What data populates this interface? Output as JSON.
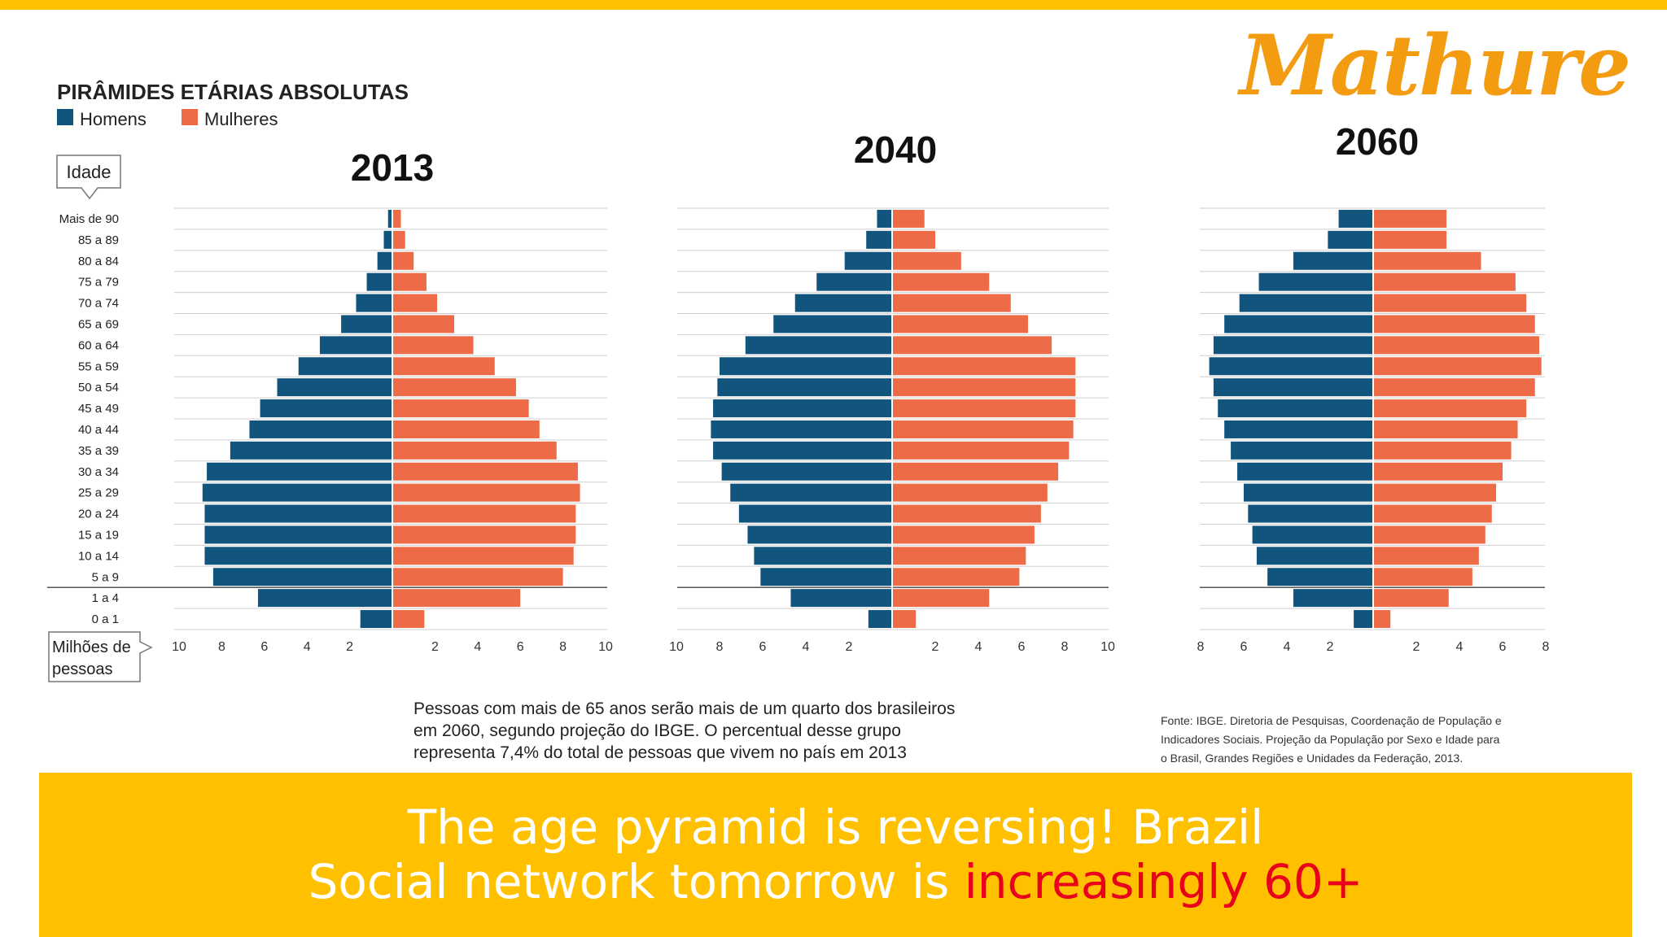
{
  "banner": {
    "line1": "The age pyramid is reversing! Brazil",
    "line2_prefix": "Social network tomorrow is ",
    "line2_highlight": "increasingly 60+",
    "highlight_color": "#E8001C",
    "background_color": "#FFC000"
  },
  "logo": {
    "text": "Mathure",
    "color": "#F39C12"
  },
  "chart_data": {
    "type": "bar",
    "orientation": "horizontal",
    "subtype": "population-pyramid",
    "title": "PIRÂMIDES ETÁRIAS ABSOLUTAS",
    "legend": {
      "placement": "top-left",
      "items": [
        "Homens",
        "Mulheres"
      ]
    },
    "colors": {
      "Homens": "#11557F",
      "Mulheres": "#EE6B47"
    },
    "ylabel": "Idade",
    "xlabel": "Milhões de pessoas",
    "categories": [
      "Mais de 90",
      "85 a 89",
      "80 a 84",
      "75 a 79",
      "70 a 74",
      "65 a 69",
      "60 a 64",
      "55 a 59",
      "50 a 54",
      "45 a 49",
      "40 a 44",
      "35 a 39",
      "30 a 34",
      "25 a 29",
      "20 a 24",
      "15 a 19",
      "10 a 14",
      "5 a 9",
      "1 a 4",
      "0 a 1"
    ],
    "panels": [
      {
        "year": "2013",
        "xlim": [
          0,
          10
        ],
        "xticks": [
          "10",
          "8",
          "6",
          "4",
          "2",
          "2",
          "4",
          "6",
          "8",
          "10"
        ],
        "series": [
          {
            "name": "Homens",
            "values": [
              0.2,
              0.4,
              0.7,
              1.2,
              1.7,
              2.4,
              3.4,
              4.4,
              5.4,
              6.2,
              6.7,
              7.6,
              8.7,
              8.9,
              8.8,
              8.8,
              8.8,
              8.4,
              6.3,
              1.5
            ]
          },
          {
            "name": "Mulheres",
            "values": [
              0.4,
              0.6,
              1.0,
              1.6,
              2.1,
              2.9,
              3.8,
              4.8,
              5.8,
              6.4,
              6.9,
              7.7,
              8.7,
              8.8,
              8.6,
              8.6,
              8.5,
              8.0,
              6.0,
              1.5
            ]
          }
        ]
      },
      {
        "year": "2040",
        "xlim": [
          0,
          10
        ],
        "xticks": [
          "10",
          "8",
          "6",
          "4",
          "2",
          "2",
          "4",
          "6",
          "8",
          "10"
        ],
        "series": [
          {
            "name": "Homens",
            "values": [
              0.7,
              1.2,
              2.2,
              3.5,
              4.5,
              5.5,
              6.8,
              8.0,
              8.1,
              8.3,
              8.4,
              8.3,
              7.9,
              7.5,
              7.1,
              6.7,
              6.4,
              6.1,
              4.7,
              1.1
            ]
          },
          {
            "name": "Mulheres",
            "values": [
              1.5,
              2.0,
              3.2,
              4.5,
              5.5,
              6.3,
              7.4,
              8.5,
              8.5,
              8.5,
              8.4,
              8.2,
              7.7,
              7.2,
              6.9,
              6.6,
              6.2,
              5.9,
              4.5,
              1.1
            ]
          }
        ]
      },
      {
        "year": "2060",
        "xlim": [
          0,
          8
        ],
        "xticks": [
          "8",
          "6",
          "4",
          "2",
          "2",
          "4",
          "6",
          "8"
        ],
        "series": [
          {
            "name": "Homens",
            "values": [
              1.6,
              2.1,
              3.7,
              5.3,
              6.2,
              6.9,
              7.4,
              7.6,
              7.4,
              7.2,
              6.9,
              6.6,
              6.3,
              6.0,
              5.8,
              5.6,
              5.4,
              4.9,
              3.7,
              0.9
            ]
          },
          {
            "name": "Mulheres",
            "values": [
              3.4,
              3.4,
              5.0,
              6.6,
              7.1,
              7.5,
              7.7,
              7.8,
              7.5,
              7.1,
              6.7,
              6.4,
              6.0,
              5.7,
              5.5,
              5.2,
              4.9,
              4.6,
              3.5,
              0.8
            ]
          }
        ]
      }
    ],
    "note": [
      "Pessoas com mais de 65 anos serão mais de um quarto dos brasileiros",
      "em 2060, segundo projeção do IBGE. O percentual desse grupo",
      "representa 7,4% do total de pessoas que vivem no país em 2013"
    ],
    "source": [
      "Fonte: IBGE. Diretoria de Pesquisas, Coordenação de População e",
      "Indicadores Sociais. Projeção da População por Sexo e Idade para",
      "o Brasil, Grandes Regiões e Unidades da Federação, 2013."
    ]
  }
}
